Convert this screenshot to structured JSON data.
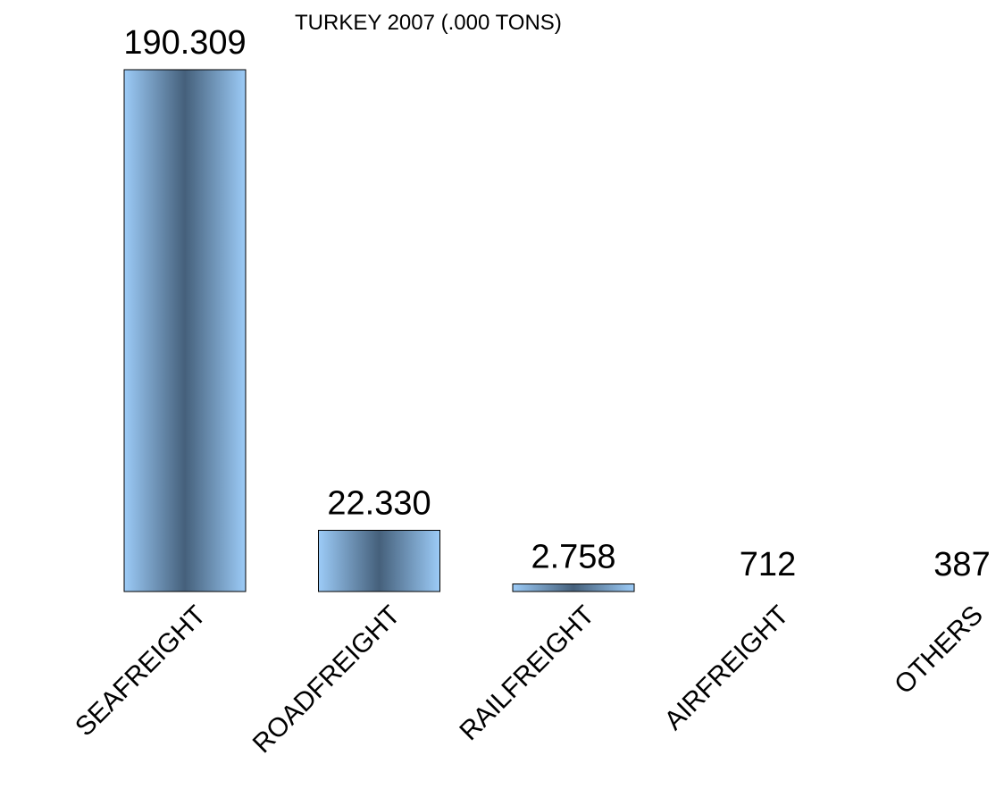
{
  "chart_data": {
    "type": "bar",
    "title": "TURKEY 2007 (.000 TONS)",
    "categories": [
      "SEAFREIGHT",
      "ROADFREIGHT",
      "RAILFREIGHT",
      "AIRFREIGHT",
      "OTHERS"
    ],
    "values": [
      190309,
      22330,
      2758,
      712,
      387
    ],
    "value_labels": [
      "190.309",
      "22.330",
      "2.758",
      "712",
      "387"
    ],
    "xlabel": "",
    "ylabel": "",
    "ylim": [
      0,
      190309
    ],
    "grid": false,
    "legend": "none",
    "colors": {
      "bar_edge": "#9ccbf7",
      "bar_center": "#45607b",
      "bar_outline": "#000000"
    }
  }
}
